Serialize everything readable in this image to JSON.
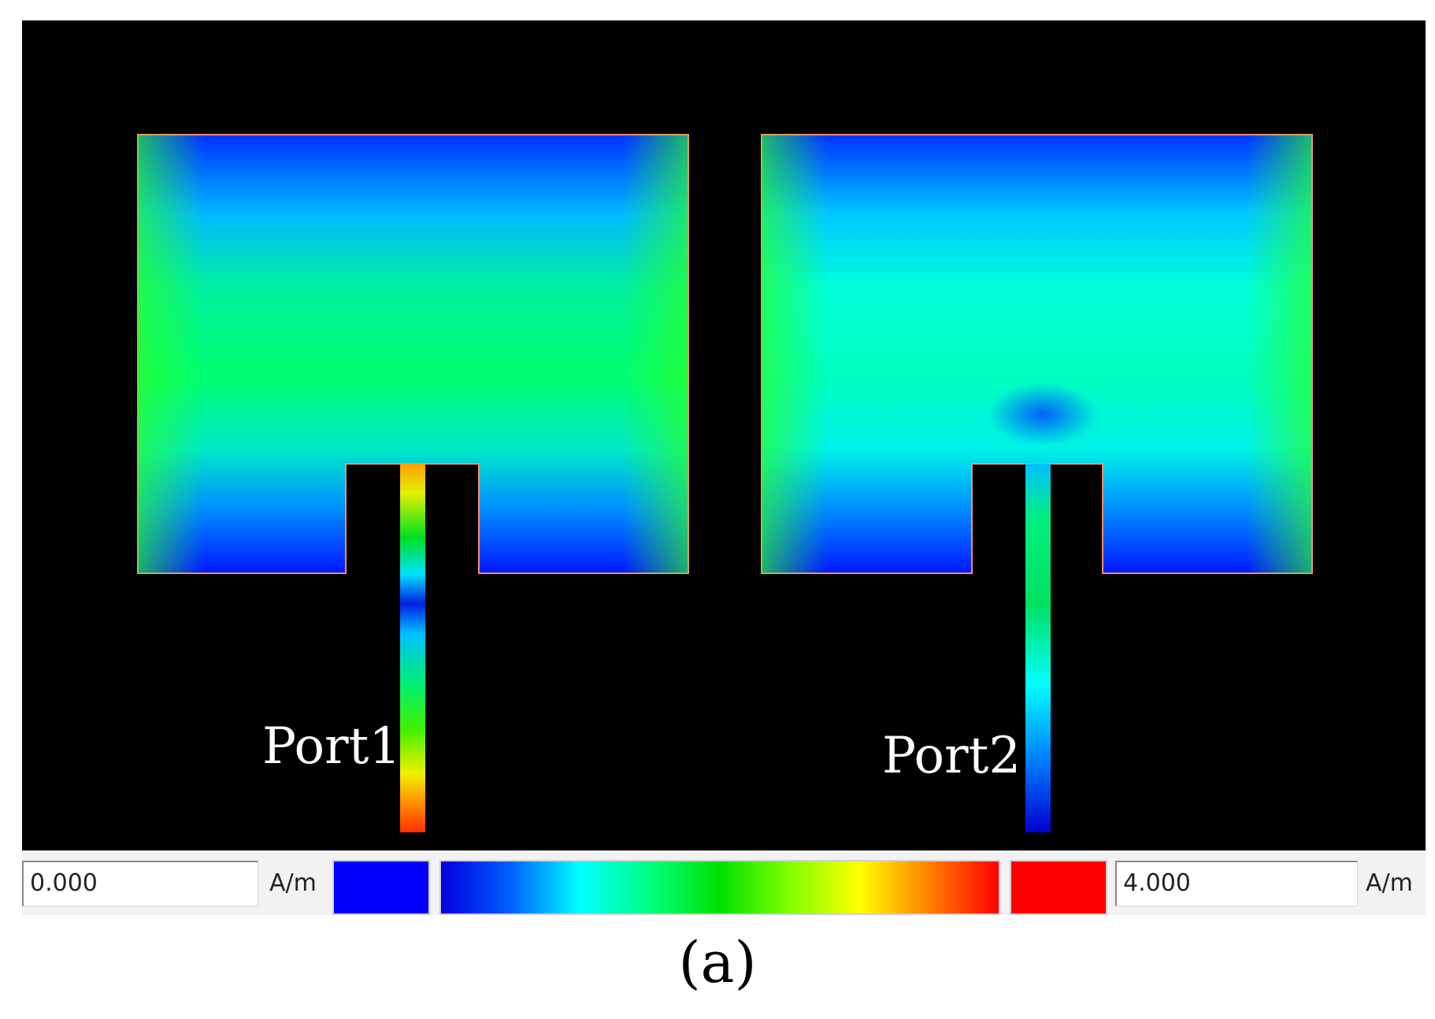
{
  "ports": {
    "port1": "Port1",
    "port2": "Port2"
  },
  "legend": {
    "min_value": "0.000",
    "max_value": "4.000",
    "min_unit": "A/m",
    "max_unit": "A/m",
    "colors": {
      "min": "#0000ff",
      "max": "#ff0000",
      "scale": [
        "#0000e0",
        "#0060ff",
        "#00ffff",
        "#00ff80",
        "#00e000",
        "#80ff00",
        "#ffff00",
        "#ff8000",
        "#ff0000"
      ]
    }
  },
  "caption": "(a)"
}
